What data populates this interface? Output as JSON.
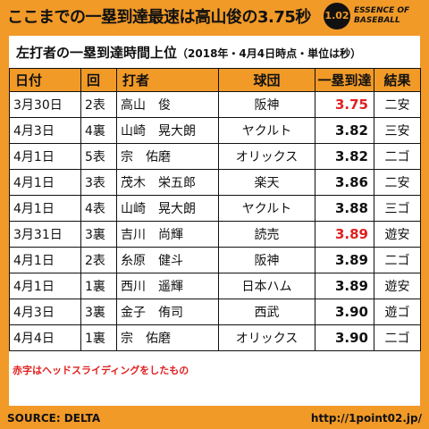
{
  "header": {
    "title": "ここまでの一塁到達最速は高山俊の3.75秒",
    "logo": {
      "number": "1.02",
      "line1": "ESSENCE OF",
      "line2": "BASEBALL"
    }
  },
  "subtitle": {
    "main": "左打者の一塁到達時間上位",
    "paren": "（2018年・4月4日時点・単位は秒）"
  },
  "table": {
    "columns": [
      "日付",
      "回",
      "打者",
      "球団",
      "一塁到達",
      "結果"
    ],
    "rows": [
      {
        "date": "3月30日",
        "inning": "2表",
        "batter": "高山　俊",
        "team": "阪神",
        "time": "3.75",
        "result": "二安",
        "red": true
      },
      {
        "date": "4月3日",
        "inning": "4裏",
        "batter": "山崎　晃大朗",
        "team": "ヤクルト",
        "time": "3.82",
        "result": "三安",
        "red": false
      },
      {
        "date": "4月1日",
        "inning": "5表",
        "batter": "宗　佑磨",
        "team": "オリックス",
        "time": "3.82",
        "result": "二ゴ",
        "red": false
      },
      {
        "date": "4月1日",
        "inning": "3表",
        "batter": "茂木　栄五郎",
        "team": "楽天",
        "time": "3.86",
        "result": "二安",
        "red": false
      },
      {
        "date": "4月1日",
        "inning": "4表",
        "batter": "山崎　晃大朗",
        "team": "ヤクルト",
        "time": "3.88",
        "result": "三ゴ",
        "red": false
      },
      {
        "date": "3月31日",
        "inning": "3裏",
        "batter": "吉川　尚輝",
        "team": "読売",
        "time": "3.89",
        "result": "遊安",
        "red": true
      },
      {
        "date": "4月1日",
        "inning": "2表",
        "batter": "糸原　健斗",
        "team": "阪神",
        "time": "3.89",
        "result": "二ゴ",
        "red": false
      },
      {
        "date": "4月1日",
        "inning": "1裏",
        "batter": "西川　遥輝",
        "team": "日本ハム",
        "time": "3.89",
        "result": "遊安",
        "red": false
      },
      {
        "date": "4月3日",
        "inning": "3裏",
        "batter": "金子　侑司",
        "team": "西武",
        "time": "3.90",
        "result": "遊ゴ",
        "red": false
      },
      {
        "date": "4月4日",
        "inning": "1裏",
        "batter": "宗　佑磨",
        "team": "オリックス",
        "time": "3.90",
        "result": "二ゴ",
        "red": false
      }
    ]
  },
  "note": "赤字はヘッドスライディングをしたもの",
  "footer": {
    "source": "SOURCE: DELTA",
    "url": "http://1point02.jp/"
  },
  "colors": {
    "accent": "#f19a28",
    "highlight": "#e02020"
  }
}
